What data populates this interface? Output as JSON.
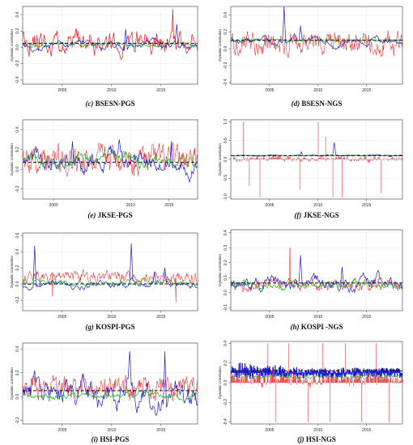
{
  "chart_data": [
    {
      "id": "c",
      "type": "line",
      "caption_letter": "(c)",
      "caption_text": "BSESN-PGS",
      "ylabel": "Dynamic correlation",
      "xlim": [
        2001,
        2018.7
      ],
      "ylim": [
        -0.45,
        0.5
      ],
      "x_ticks": [
        2005,
        2010,
        2015
      ],
      "y_ticks": [
        -0.4,
        -0.2,
        0.0,
        0.2,
        0.4
      ],
      "y_tick_labels": [
        "-0.4",
        "-0.2",
        "0.0",
        "0.2",
        "0.4"
      ],
      "dashed_line": 0.05,
      "series": [
        {
          "color": "#e8151b",
          "width": 0.7,
          "kind": "noisy",
          "seed": 11,
          "n": 220,
          "mean": 0.06,
          "amp": 0.14,
          "min": -0.2,
          "max": 0.45,
          "spikes": [
            [
              2016.2,
              0.47
            ]
          ]
        },
        {
          "color": "#1c1cdc",
          "width": 0.7,
          "kind": "smooth",
          "seed": 12,
          "n": 220,
          "mean": 0.03,
          "amp": 0.05,
          "spikes": [
            [
              2011.4,
              0.22
            ],
            [
              2016.6,
              0.28
            ]
          ]
        },
        {
          "color": "#16b816",
          "width": 0.7,
          "kind": "smooth",
          "seed": 13,
          "n": 220,
          "mean": 0.03,
          "amp": 0.025,
          "spikes": []
        }
      ]
    },
    {
      "id": "d",
      "type": "line",
      "caption_letter": "(d)",
      "caption_text": "BSESN-NGS",
      "ylabel": "Dynamic correlation",
      "xlim": [
        2001,
        2018.7
      ],
      "ylim": [
        -0.42,
        0.5
      ],
      "x_ticks": [
        2005,
        2010,
        2015
      ],
      "y_ticks": [
        -0.4,
        -0.2,
        0.0,
        0.2,
        0.4
      ],
      "y_tick_labels": [
        "-0.4",
        "-0.2",
        "0.0",
        "0.2",
        "0.4"
      ],
      "dashed_line": 0.1,
      "series": [
        {
          "color": "#e8151b",
          "width": 0.5,
          "kind": "noisy",
          "seed": 21,
          "n": 300,
          "mean": 0.06,
          "amp": 0.13,
          "min": -0.25,
          "max": 0.35,
          "spikes": []
        },
        {
          "color": "#1c1cdc",
          "width": 0.7,
          "kind": "smooth",
          "seed": 22,
          "n": 220,
          "mean": 0.1,
          "amp": 0.05,
          "spikes": [
            [
              2006.5,
              0.5
            ],
            [
              2008.2,
              0.27
            ]
          ]
        },
        {
          "color": "#16b816",
          "width": 0.7,
          "kind": "smooth",
          "seed": 23,
          "n": 220,
          "mean": 0.1,
          "amp": 0.015,
          "spikes": []
        }
      ]
    },
    {
      "id": "e",
      "type": "line",
      "caption_letter": "(e)",
      "caption_text": "JKSE-PGS",
      "ylabel": "Dynamic correlation",
      "xlim": [
        1996,
        2018.7
      ],
      "ylim": [
        -0.3,
        0.5
      ],
      "x_ticks": [
        2000,
        2010,
        2015
      ],
      "y_ticks": [
        -0.2,
        0.0,
        0.2,
        0.4
      ],
      "y_tick_labels": [
        "-0.2",
        "0.0",
        "0.2",
        "0.4"
      ],
      "dashed_line": 0.07,
      "series": [
        {
          "color": "#e8151b",
          "width": 0.5,
          "kind": "noisy",
          "seed": 31,
          "n": 320,
          "mean": 0.1,
          "amp": 0.13,
          "min": -0.12,
          "max": 0.45,
          "spikes": []
        },
        {
          "color": "#1c1cdc",
          "width": 0.7,
          "kind": "smooth",
          "seed": 32,
          "n": 240,
          "mean": 0.08,
          "amp": 0.1,
          "spikes": [
            [
              2002.5,
              0.28
            ],
            [
              2008.5,
              0.3
            ],
            [
              2015.3,
              0.28
            ]
          ]
        },
        {
          "color": "#16b816",
          "width": 0.7,
          "kind": "smooth",
          "seed": 33,
          "n": 240,
          "mean": 0.08,
          "amp": 0.06,
          "spikes": []
        }
      ]
    },
    {
      "id": "f",
      "type": "line",
      "caption_letter": "(f)",
      "caption_text": "JKSE-NGS",
      "ylabel": "Dynamic correlation",
      "xlim": [
        2001,
        2018.7
      ],
      "ylim": [
        -1.05,
        1.05
      ],
      "x_ticks": [
        2005,
        2010,
        2015
      ],
      "y_ticks": [
        -1.0,
        -0.5,
        0.0,
        0.5,
        1.0
      ],
      "y_tick_labels": [
        "-1.0",
        "-0.5",
        "0.0",
        "0.5",
        "1.0"
      ],
      "dashed_line": 0.1,
      "series": [
        {
          "color": "#e8151b",
          "width": 0.5,
          "kind": "bars",
          "seed": 41,
          "n": 260,
          "mean": 0.02,
          "amp": 0.08,
          "min": -0.2,
          "max": 0.2,
          "spikes": [
            [
              2002.3,
              1.0
            ],
            [
              2002.9,
              -0.7
            ],
            [
              2004.0,
              -1.0
            ],
            [
              2008.1,
              -0.8
            ],
            [
              2010.0,
              1.0
            ],
            [
              2010.8,
              0.6
            ],
            [
              2011.5,
              -1.0
            ],
            [
              2012.5,
              -1.0
            ],
            [
              2016.5,
              -0.9
            ]
          ]
        },
        {
          "color": "#1c1cdc",
          "width": 0.7,
          "kind": "smooth",
          "seed": 42,
          "n": 220,
          "mean": 0.1,
          "amp": 0.02,
          "spikes": [
            [
              2008.3,
              0.2
            ],
            [
              2011.7,
              0.45
            ]
          ]
        },
        {
          "color": "#16b816",
          "width": 0.7,
          "kind": "smooth",
          "seed": 43,
          "n": 220,
          "mean": 0.1,
          "amp": 0.01,
          "spikes": []
        }
      ]
    },
    {
      "id": "g",
      "type": "line",
      "caption_letter": "(g)",
      "caption_text": "KOSPI-PGS",
      "ylabel": "Dynamic correlation",
      "xlim": [
        2001,
        2018.7
      ],
      "ylim": [
        -0.33,
        0.63
      ],
      "x_ticks": [
        2005,
        2010,
        2015
      ],
      "y_ticks": [
        -0.2,
        0.0,
        0.2,
        0.4,
        0.6
      ],
      "y_tick_labels": [
        "-0.2",
        "0.0",
        "0.2",
        "0.4",
        "0.6"
      ],
      "dashed_line": 0.0,
      "series": [
        {
          "color": "#e8151b",
          "width": 0.5,
          "kind": "noisy",
          "seed": 51,
          "n": 300,
          "mean": 0.08,
          "amp": 0.07,
          "min": -0.3,
          "max": 0.2,
          "spikes": [
            [
              2004.0,
              -0.15
            ],
            [
              2016.5,
              -0.22
            ]
          ]
        },
        {
          "color": "#1c1cdc",
          "width": 0.7,
          "kind": "smooth",
          "seed": 52,
          "n": 220,
          "mean": -0.02,
          "amp": 0.05,
          "spikes": [
            [
              2002.2,
              0.47
            ],
            [
              2012.0,
              0.5
            ],
            [
              2014.3,
              0.15
            ],
            [
              2015.4,
              0.2
            ]
          ]
        },
        {
          "color": "#16b816",
          "width": 0.7,
          "kind": "smooth",
          "seed": 53,
          "n": 220,
          "mean": 0.02,
          "amp": 0.04,
          "spikes": []
        }
      ]
    },
    {
      "id": "h",
      "type": "line",
      "caption_letter": "(h)",
      "caption_text": "KOSPI -NGS",
      "ylabel": "Dynamic correlation",
      "xlim": [
        2001,
        2018.7
      ],
      "ylim": [
        -0.12,
        0.42
      ],
      "x_ticks": [
        2005,
        2010,
        2015
      ],
      "y_ticks": [
        -0.1,
        0.0,
        0.1,
        0.2,
        0.3,
        0.4
      ],
      "y_tick_labels": [
        "-0.1",
        "0.0",
        "0.1",
        "0.2",
        "0.3",
        "0.4"
      ],
      "dashed_line": 0.065,
      "series": [
        {
          "color": "#e8151b",
          "width": 0.5,
          "kind": "noisy",
          "seed": 61,
          "n": 300,
          "mean": 0.05,
          "amp": 0.04,
          "min": -0.06,
          "max": 0.3,
          "spikes": [
            [
              2007.1,
              0.3
            ]
          ]
        },
        {
          "color": "#1c1cdc",
          "width": 0.7,
          "kind": "smooth",
          "seed": 62,
          "n": 220,
          "mean": 0.06,
          "amp": 0.05,
          "spikes": [
            [
              2008.2,
              0.25
            ],
            [
              2012.5,
              0.17
            ],
            [
              2016.2,
              0.15
            ]
          ]
        },
        {
          "color": "#16b816",
          "width": 0.7,
          "kind": "smooth",
          "seed": 63,
          "n": 220,
          "mean": 0.05,
          "amp": 0.03,
          "spikes": []
        }
      ]
    },
    {
      "id": "i",
      "type": "line",
      "caption_letter": "(i)",
      "caption_text": "HSI-PGS",
      "ylabel": "Dynamic correlation",
      "xlim": [
        2001,
        2018.7
      ],
      "ylim": [
        -0.23,
        0.45
      ],
      "x_ticks": [
        2005,
        2010,
        2015
      ],
      "y_ticks": [
        -0.2,
        0.0,
        0.2,
        0.4
      ],
      "y_tick_labels": [
        "-0.2",
        "0.0",
        "0.2",
        "0.4"
      ],
      "dashed_line": 0.05,
      "series": [
        {
          "color": "#e8151b",
          "width": 0.5,
          "kind": "noisy",
          "seed": 71,
          "n": 300,
          "mean": 0.08,
          "amp": 0.1,
          "min": -0.18,
          "max": 0.28,
          "spikes": []
        },
        {
          "color": "#1c1cdc",
          "width": 0.7,
          "kind": "smooth",
          "seed": 72,
          "n": 220,
          "mean": 0.02,
          "amp": 0.13,
          "spikes": [
            [
              2011.8,
              0.38
            ],
            [
              2015.4,
              0.38
            ]
          ]
        },
        {
          "color": "#16b816",
          "width": 0.7,
          "kind": "smooth",
          "seed": 73,
          "n": 220,
          "mean": 0.0,
          "amp": 0.03,
          "spikes": []
        }
      ]
    },
    {
      "id": "j",
      "type": "line",
      "caption_letter": "(j)",
      "caption_text": "HSI-NGS",
      "ylabel": "Dynamic correlation",
      "xlim": [
        2001,
        2018.7
      ],
      "ylim": [
        -0.42,
        0.42
      ],
      "x_ticks": [
        2005,
        2010,
        2015
      ],
      "y_ticks": [
        -0.4,
        -0.2,
        0.0,
        0.2,
        0.4
      ],
      "y_tick_labels": [
        "-0.4",
        "-0.2",
        "0.0",
        "0.2",
        "0.4"
      ],
      "dashed_line": 0.12,
      "series": [
        {
          "color": "#e8151b",
          "width": 0.5,
          "kind": "bars",
          "seed": 81,
          "n": 320,
          "mean": 0.05,
          "amp": 0.08,
          "min": -0.1,
          "max": 0.3,
          "spikes": [
            [
              2004.8,
              0.4
            ],
            [
              2005.6,
              -0.4
            ],
            [
              2007.0,
              0.4
            ],
            [
              2009.0,
              -0.4
            ],
            [
              2010.5,
              0.4
            ],
            [
              2011.2,
              -0.4
            ],
            [
              2012.8,
              0.4
            ],
            [
              2014.5,
              -0.4
            ],
            [
              2016.0,
              0.4
            ],
            [
              2017.3,
              -0.4
            ]
          ]
        },
        {
          "color": "#1c1cdc",
          "width": 1.2,
          "kind": "band",
          "seed": 82,
          "n": 520,
          "mean": 0.1,
          "amp": 0.05,
          "min": 0.0,
          "max": 0.25,
          "spikes": []
        },
        {
          "color": "#16b816",
          "width": 0.7,
          "kind": "smooth",
          "seed": 83,
          "n": 220,
          "mean": 0.06,
          "amp": 0.02,
          "spikes": []
        }
      ]
    }
  ]
}
